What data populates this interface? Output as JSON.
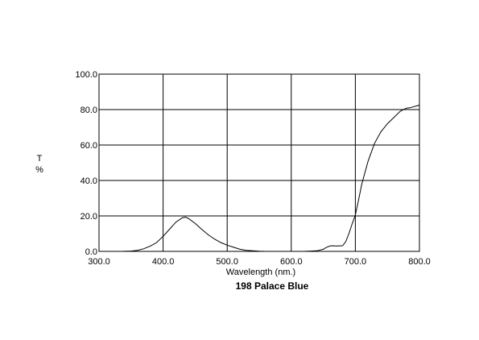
{
  "chart_data": {
    "type": "line",
    "title": "198 Palace Blue",
    "xlabel": "Wavelength (nm.)",
    "ylabel": "T\n%",
    "xlim": [
      300,
      800
    ],
    "ylim": [
      0,
      100
    ],
    "xticks": [
      "300.0",
      "400.0",
      "500.0",
      "600.0",
      "700.0",
      "800.0"
    ],
    "yticks": [
      "0.0",
      "20.0",
      "40.0",
      "60.0",
      "80.0",
      "100.0"
    ],
    "grid": true,
    "series": [
      {
        "x": [
          335,
          350,
          360,
          370,
          380,
          390,
          400,
          410,
          420,
          430,
          435,
          440,
          450,
          460,
          470,
          480,
          490,
          500,
          510,
          520,
          530,
          540,
          550,
          560,
          570,
          580,
          590,
          600,
          620,
          640,
          650,
          655,
          660,
          665,
          670,
          680,
          685,
          690,
          695,
          700,
          705,
          710,
          720,
          730,
          740,
          750,
          760,
          770,
          775,
          780,
          785,
          790,
          795,
          800
        ],
        "values": [
          0.0,
          0.2,
          0.6,
          1.5,
          3.0,
          5.0,
          8.5,
          12.5,
          16.5,
          19.0,
          19.3,
          18.5,
          15.8,
          12.5,
          9.5,
          7.0,
          5.0,
          3.5,
          2.3,
          1.2,
          0.6,
          0.3,
          0.1,
          0.0,
          0.0,
          0.0,
          0.0,
          0.0,
          0.0,
          0.3,
          1.2,
          2.3,
          3.0,
          3.2,
          3.0,
          3.2,
          5.5,
          10.0,
          15.5,
          20.5,
          29.0,
          38.0,
          51.0,
          61.0,
          67.5,
          72.0,
          75.5,
          79.0,
          80.0,
          80.8,
          81.0,
          81.5,
          82.0,
          82.5
        ]
      }
    ]
  }
}
